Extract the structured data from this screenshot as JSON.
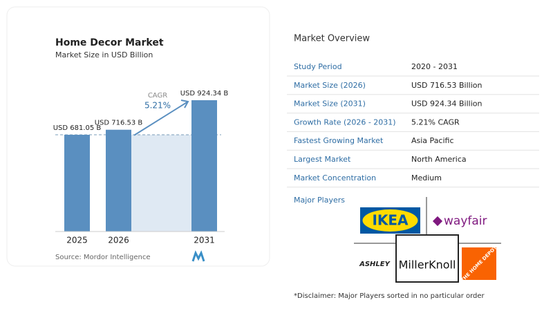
{
  "chart_data": {
    "type": "bar",
    "title": "Home Decor Market",
    "subtitle": "Market Size in USD Billion",
    "categories": [
      "2025",
      "2026",
      "2031"
    ],
    "values": [
      681.05,
      716.53,
      924.34
    ],
    "value_labels": [
      "USD 681.05 B",
      "USD 716.53 B",
      "USD 924.34 B"
    ],
    "color": "#5a8fc0",
    "annotation": {
      "label": "CAGR",
      "value": "5.21%"
    },
    "source": "Source: Mordor Intelligence"
  },
  "overview": {
    "title": "Market Overview",
    "rows": [
      [
        "Study Period",
        "2020 - 2031"
      ],
      [
        "Market Size (2026)",
        "USD 716.53 Billion"
      ],
      [
        "Market Size (2031)",
        "USD 924.34 Billion"
      ],
      [
        "Growth Rate (2026 - 2031)",
        "5.21% CAGR"
      ],
      [
        "Fastest Growing Market",
        "Asia Pacific"
      ],
      [
        "Largest Market",
        "North America"
      ],
      [
        "Market Concentration",
        "Medium"
      ]
    ],
    "players_title": "Major Players",
    "players": [
      "IKEA",
      "wayfair",
      "ASHLEY",
      "MillerKnoll",
      "THE HOME DEPOT"
    ],
    "disclaimer": "*Disclaimer: Major Players sorted in no particular order"
  }
}
